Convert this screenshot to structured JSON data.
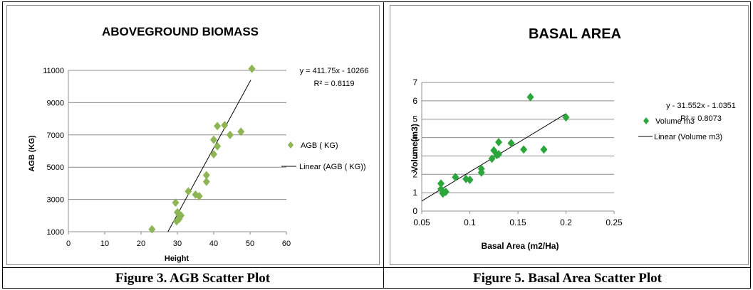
{
  "captions": {
    "left": "Figure 3. AGB Scatter Plot",
    "right": "Figure 5. Basal Area Scatter Plot"
  },
  "chart_data": [
    {
      "type": "scatter",
      "title": "ABOVEGROUND BIOMASS",
      "xlabel": "Height",
      "ylabel": "AGB (KG)",
      "xlim": [
        0,
        60
      ],
      "ylim": [
        1000,
        11000
      ],
      "xticks": [
        "0",
        "10",
        "20",
        "30",
        "40",
        "50",
        "60"
      ],
      "yticks": [
        "1000",
        "3000",
        "5000",
        "7000",
        "9000",
        "11000"
      ],
      "grid": "horizontal",
      "legend_position": "right",
      "series": [
        {
          "name": "AGB ( KG)",
          "color": "#8db554",
          "marker": "diamond",
          "points": [
            [
              23,
              1150
            ],
            [
              29.5,
              2800
            ],
            [
              30,
              2200
            ],
            [
              30.5,
              1800
            ],
            [
              29.8,
              1650
            ],
            [
              30.5,
              2000
            ],
            [
              31,
              2000
            ],
            [
              33,
              3500
            ],
            [
              35,
              3300
            ],
            [
              36,
              3200
            ],
            [
              38,
              4500
            ],
            [
              38,
              4100
            ],
            [
              40,
              5800
            ],
            [
              40,
              6700
            ],
            [
              41,
              7550
            ],
            [
              41,
              6300
            ],
            [
              43,
              7600
            ],
            [
              44.5,
              7000
            ],
            [
              47.5,
              7200
            ],
            [
              50.5,
              11100
            ]
          ]
        },
        {
          "name": "Linear (AGB ( KG))",
          "type": "line",
          "color": "#000000",
          "points": [
            [
              27.4,
              1000
            ],
            [
              50.2,
              10400
            ]
          ]
        }
      ],
      "annotations": [
        "y = 411.75x - 10266",
        "R² = 0.8119"
      ]
    },
    {
      "type": "scatter",
      "title": "BASAL AREA",
      "xlabel": "Basal Area (m2/Ha)",
      "ylabel": "Volume(m3)",
      "xlim": [
        0.05,
        0.25
      ],
      "ylim": [
        0,
        7
      ],
      "xticks": [
        "0.05",
        "0.1",
        "0.15",
        "0.2",
        "0.25"
      ],
      "yticks": [
        "0",
        "1",
        "2",
        "3",
        "4",
        "5",
        "6",
        "7"
      ],
      "grid": "horizontal",
      "legend_position": "right",
      "series": [
        {
          "name": "Volume m3",
          "color": "#2aa63a",
          "marker": "diamond",
          "points": [
            [
              0.07,
              1.5
            ],
            [
              0.07,
              1.2
            ],
            [
              0.072,
              0.95
            ],
            [
              0.075,
              1.05
            ],
            [
              0.085,
              1.85
            ],
            [
              0.096,
              1.75
            ],
            [
              0.1,
              1.7
            ],
            [
              0.112,
              2.3
            ],
            [
              0.112,
              2.1
            ],
            [
              0.123,
              2.85
            ],
            [
              0.125,
              3.3
            ],
            [
              0.128,
              3.05
            ],
            [
              0.13,
              3.1
            ],
            [
              0.13,
              3.75
            ],
            [
              0.143,
              3.7
            ],
            [
              0.156,
              3.35
            ],
            [
              0.163,
              6.2
            ],
            [
              0.177,
              3.35
            ],
            [
              0.2,
              5.1
            ]
          ]
        },
        {
          "name": "Linear (Volume m3)",
          "type": "line",
          "color": "#000000",
          "points": [
            [
              0.05,
              0.55
            ],
            [
              0.2,
              5.3
            ]
          ]
        }
      ],
      "annotations": [
        "y - 31.552x - 1.0351",
        "R² = 0.8073"
      ]
    }
  ]
}
